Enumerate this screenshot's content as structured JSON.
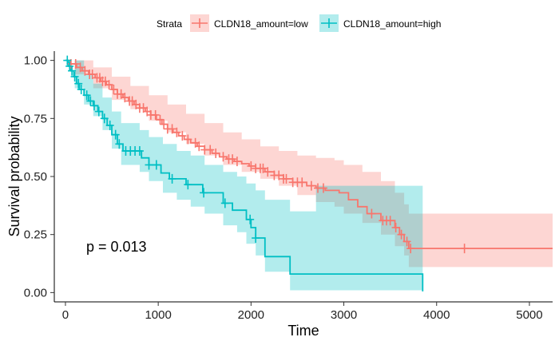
{
  "chart_data": {
    "type": "line",
    "subtype": "kaplan-meier",
    "title": "",
    "xlabel": "Time",
    "ylabel": "Survival probability",
    "xlim": [
      -120,
      5250
    ],
    "ylim": [
      -0.04,
      1.04
    ],
    "x_ticks": [
      0,
      1000,
      2000,
      3000,
      4000,
      5000
    ],
    "y_ticks": [
      0.0,
      0.25,
      0.5,
      0.75,
      1.0
    ],
    "x_tick_labels": [
      "0",
      "1000",
      "2000",
      "3000",
      "4000",
      "5000"
    ],
    "y_tick_labels": [
      "0.00",
      "0.25",
      "0.50",
      "0.75",
      "1.00"
    ],
    "grid": false,
    "legend": {
      "position": "top",
      "title": "Strata",
      "entries": [
        "CLDN18_amount=low",
        "CLDN18_amount=high"
      ]
    },
    "annotation": "p = 0.013",
    "series": [
      {
        "name": "CLDN18_amount=low",
        "color": "#F8766D",
        "band_color": "#F8766D",
        "steps": [
          [
            0,
            1.0
          ],
          [
            50,
            0.985
          ],
          [
            120,
            0.97
          ],
          [
            180,
            0.955
          ],
          [
            250,
            0.94
          ],
          [
            320,
            0.925
          ],
          [
            380,
            0.91
          ],
          [
            440,
            0.895
          ],
          [
            500,
            0.875
          ],
          [
            560,
            0.855
          ],
          [
            620,
            0.84
          ],
          [
            680,
            0.825
          ],
          [
            740,
            0.81
          ],
          [
            800,
            0.795
          ],
          [
            860,
            0.78
          ],
          [
            920,
            0.765
          ],
          [
            980,
            0.745
          ],
          [
            1040,
            0.725
          ],
          [
            1100,
            0.705
          ],
          [
            1160,
            0.69
          ],
          [
            1220,
            0.675
          ],
          [
            1280,
            0.66
          ],
          [
            1350,
            0.645
          ],
          [
            1420,
            0.63
          ],
          [
            1500,
            0.615
          ],
          [
            1580,
            0.6
          ],
          [
            1660,
            0.585
          ],
          [
            1740,
            0.575
          ],
          [
            1820,
            0.565
          ],
          [
            1900,
            0.555
          ],
          [
            1980,
            0.545
          ],
          [
            2050,
            0.535
          ],
          [
            2150,
            0.52
          ],
          [
            2250,
            0.505
          ],
          [
            2350,
            0.49
          ],
          [
            2450,
            0.475
          ],
          [
            2600,
            0.46
          ],
          [
            2700,
            0.45
          ],
          [
            2800,
            0.44
          ],
          [
            2950,
            0.43
          ],
          [
            3050,
            0.4
          ],
          [
            3150,
            0.37
          ],
          [
            3250,
            0.34
          ],
          [
            3400,
            0.31
          ],
          [
            3550,
            0.28
          ],
          [
            3600,
            0.25
          ],
          [
            3650,
            0.22
          ],
          [
            3700,
            0.19
          ],
          [
            5250,
            0.19
          ]
        ],
        "lower": [
          [
            0,
            1.0
          ],
          [
            100,
            0.94
          ],
          [
            300,
            0.88
          ],
          [
            500,
            0.83
          ],
          [
            700,
            0.79
          ],
          [
            900,
            0.74
          ],
          [
            1100,
            0.69
          ],
          [
            1300,
            0.64
          ],
          [
            1500,
            0.59
          ],
          [
            1700,
            0.55
          ],
          [
            1900,
            0.52
          ],
          [
            2100,
            0.49
          ],
          [
            2300,
            0.46
          ],
          [
            2500,
            0.42
          ],
          [
            2700,
            0.39
          ],
          [
            2900,
            0.37
          ],
          [
            3000,
            0.34
          ],
          [
            3200,
            0.3
          ],
          [
            3400,
            0.25
          ],
          [
            3550,
            0.2
          ],
          [
            3650,
            0.16
          ],
          [
            3700,
            0.11
          ],
          [
            5250,
            0.11
          ]
        ],
        "upper": [
          [
            0,
            1.0
          ],
          [
            100,
            1.0
          ],
          [
            300,
            0.97
          ],
          [
            500,
            0.93
          ],
          [
            700,
            0.89
          ],
          [
            900,
            0.85
          ],
          [
            1100,
            0.81
          ],
          [
            1300,
            0.77
          ],
          [
            1500,
            0.73
          ],
          [
            1700,
            0.69
          ],
          [
            1900,
            0.66
          ],
          [
            2100,
            0.63
          ],
          [
            2300,
            0.61
          ],
          [
            2500,
            0.59
          ],
          [
            2700,
            0.58
          ],
          [
            2900,
            0.57
          ],
          [
            3000,
            0.55
          ],
          [
            3200,
            0.52
          ],
          [
            3400,
            0.48
          ],
          [
            3550,
            0.43
          ],
          [
            3650,
            0.38
          ],
          [
            3700,
            0.34
          ],
          [
            5250,
            0.34
          ]
        ],
        "censor_x": [
          60,
          110,
          160,
          210,
          260,
          290,
          340,
          370,
          400,
          430,
          470,
          520,
          560,
          600,
          640,
          690,
          720,
          760,
          800,
          840,
          880,
          920,
          970,
          1020,
          1060,
          1100,
          1150,
          1200,
          1260,
          1320,
          1400,
          1440,
          1500,
          1560,
          1620,
          1700,
          1760,
          1800,
          1850,
          2000,
          2050,
          2100,
          2130,
          2180,
          2250,
          2300,
          2350,
          2380,
          2450,
          2500,
          2550,
          2650,
          2720,
          2780,
          3300,
          3420,
          3460,
          3500,
          3560,
          3620,
          3680,
          3720,
          4300
        ]
      },
      {
        "name": "CLDN18_amount=high",
        "color": "#00BFC4",
        "band_color": "#00BFC4",
        "steps": [
          [
            0,
            1.0
          ],
          [
            30,
            0.975
          ],
          [
            60,
            0.955
          ],
          [
            90,
            0.93
          ],
          [
            120,
            0.9
          ],
          [
            150,
            0.875
          ],
          [
            200,
            0.85
          ],
          [
            250,
            0.825
          ],
          [
            300,
            0.805
          ],
          [
            350,
            0.78
          ],
          [
            400,
            0.75
          ],
          [
            450,
            0.72
          ],
          [
            500,
            0.68
          ],
          [
            560,
            0.64
          ],
          [
            620,
            0.61
          ],
          [
            820,
            0.58
          ],
          [
            900,
            0.55
          ],
          [
            1030,
            0.515
          ],
          [
            1120,
            0.49
          ],
          [
            1300,
            0.465
          ],
          [
            1480,
            0.43
          ],
          [
            1700,
            0.385
          ],
          [
            1800,
            0.355
          ],
          [
            1950,
            0.315
          ],
          [
            2000,
            0.28
          ],
          [
            2050,
            0.235
          ],
          [
            2150,
            0.155
          ],
          [
            2420,
            0.08
          ],
          [
            3850,
            0.08
          ],
          [
            3850,
            0.005
          ]
        ],
        "lower": [
          [
            0,
            1.0
          ],
          [
            100,
            0.88
          ],
          [
            200,
            0.81
          ],
          [
            300,
            0.76
          ],
          [
            400,
            0.7
          ],
          [
            500,
            0.62
          ],
          [
            600,
            0.55
          ],
          [
            800,
            0.52
          ],
          [
            900,
            0.48
          ],
          [
            1050,
            0.43
          ],
          [
            1200,
            0.4
          ],
          [
            1350,
            0.37
          ],
          [
            1500,
            0.34
          ],
          [
            1700,
            0.29
          ],
          [
            1850,
            0.26
          ],
          [
            1950,
            0.21
          ],
          [
            2050,
            0.16
          ],
          [
            2150,
            0.09
          ],
          [
            2420,
            0.01
          ],
          [
            3850,
            0.01
          ]
        ],
        "upper": [
          [
            0,
            1.0
          ],
          [
            100,
            1.0
          ],
          [
            200,
            0.94
          ],
          [
            300,
            0.9
          ],
          [
            400,
            0.84
          ],
          [
            500,
            0.78
          ],
          [
            600,
            0.73
          ],
          [
            800,
            0.7
          ],
          [
            900,
            0.67
          ],
          [
            1050,
            0.64
          ],
          [
            1200,
            0.61
          ],
          [
            1350,
            0.59
          ],
          [
            1500,
            0.55
          ],
          [
            1700,
            0.52
          ],
          [
            1850,
            0.5
          ],
          [
            1950,
            0.47
          ],
          [
            2050,
            0.44
          ],
          [
            2150,
            0.4
          ],
          [
            2420,
            0.35
          ],
          [
            2700,
            0.46
          ],
          [
            3850,
            0.46
          ]
        ],
        "censor_x": [
          20,
          45,
          70,
          100,
          140,
          170,
          230,
          270,
          310,
          360,
          420,
          480,
          540,
          580,
          650,
          700,
          750,
          800,
          900,
          980,
          1150,
          1320,
          1490,
          1720,
          1990,
          2050
        ]
      }
    ]
  }
}
